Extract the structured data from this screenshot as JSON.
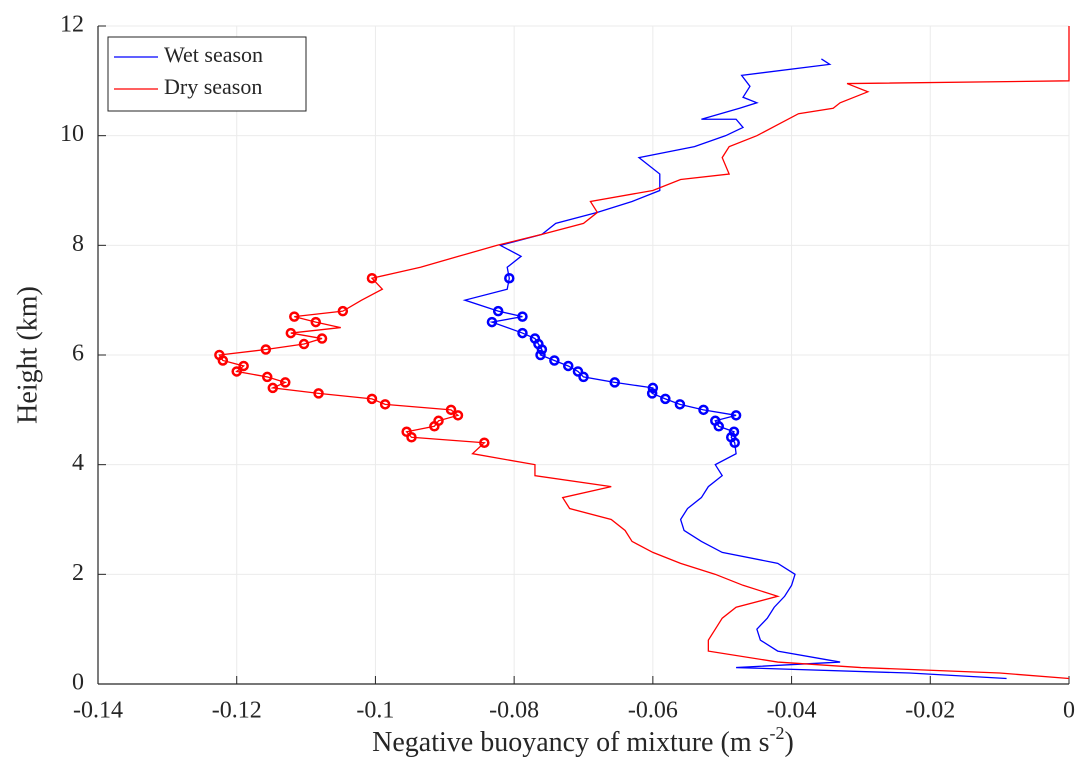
{
  "chart_data": {
    "type": "line",
    "xlabel": {
      "text": "Negative buoyancy of mixture (m s",
      "sup": "-2",
      "end": ")"
    },
    "ylabel": "Height (km)",
    "xlim": [
      -0.14,
      0
    ],
    "ylim": [
      0,
      12
    ],
    "xticks": [
      -0.14,
      -0.12,
      -0.1,
      -0.08,
      -0.06,
      -0.04,
      -0.02,
      0
    ],
    "yticks": [
      0,
      2,
      4,
      6,
      8,
      10,
      12
    ],
    "grid": true,
    "legend": "upper left",
    "series": [
      {
        "name": "Wet season",
        "color": "#0000ff",
        "x": [
          -0.0357,
          -0.0345,
          -0.0472,
          -0.046,
          -0.047,
          -0.045,
          -0.0475,
          -0.053,
          -0.048,
          -0.047,
          -0.0495,
          -0.054,
          -0.062,
          -0.059,
          -0.059,
          -0.063,
          -0.068,
          -0.074,
          -0.076,
          -0.082,
          -0.079,
          -0.081,
          -0.0807,
          -0.081,
          -0.0871,
          -0.0823,
          -0.0788,
          -0.0832,
          -0.0788,
          -0.077,
          -0.0765,
          -0.076,
          -0.0762,
          -0.0742,
          -0.0722,
          -0.0708,
          -0.07,
          -0.0655,
          -0.06,
          -0.0601,
          -0.0582,
          -0.0561,
          -0.0527,
          -0.048,
          -0.051,
          -0.0505,
          -0.0483,
          -0.0487,
          -0.0482,
          -0.048,
          -0.051,
          -0.05,
          -0.052,
          -0.053,
          -0.055,
          -0.056,
          -0.0555,
          -0.053,
          -0.05,
          -0.042,
          -0.0395,
          -0.04,
          -0.041,
          -0.0425,
          -0.0435,
          -0.045,
          -0.0445,
          -0.042,
          -0.033,
          -0.048,
          -0.023,
          -0.009
        ],
        "y": [
          11.4,
          11.3,
          11.1,
          10.9,
          10.7,
          10.6,
          10.5,
          10.3,
          10.3,
          10.15,
          10.0,
          9.8,
          9.6,
          9.3,
          9.0,
          8.8,
          8.6,
          8.4,
          8.2,
          8.0,
          7.8,
          7.6,
          7.4,
          7.2,
          7.0,
          6.8,
          6.7,
          6.6,
          6.4,
          6.3,
          6.2,
          6.1,
          6.0,
          5.9,
          5.8,
          5.7,
          5.6,
          5.5,
          5.4,
          5.3,
          5.2,
          5.1,
          5.0,
          4.9,
          4.8,
          4.7,
          4.6,
          4.5,
          4.4,
          4.2,
          4.0,
          3.8,
          3.6,
          3.4,
          3.2,
          3.0,
          2.8,
          2.6,
          2.4,
          2.2,
          2.0,
          1.8,
          1.6,
          1.4,
          1.2,
          1.0,
          0.8,
          0.6,
          0.4,
          0.3,
          0.2,
          0.1
        ],
        "markers": {
          "x": [
            -0.0807,
            -0.0823,
            -0.0788,
            -0.0832,
            -0.0788,
            -0.077,
            -0.0765,
            -0.076,
            -0.0762,
            -0.0742,
            -0.0722,
            -0.0708,
            -0.07,
            -0.0655,
            -0.06,
            -0.0601,
            -0.0582,
            -0.0561,
            -0.0527,
            -0.048,
            -0.051,
            -0.0505,
            -0.0483,
            -0.0487,
            -0.0482
          ],
          "y": [
            7.4,
            6.8,
            6.7,
            6.6,
            6.4,
            6.3,
            6.2,
            6.1,
            6.0,
            5.9,
            5.8,
            5.7,
            5.6,
            5.5,
            5.4,
            5.3,
            5.2,
            5.1,
            5.0,
            4.9,
            4.8,
            4.7,
            4.6,
            4.5,
            4.4
          ]
        }
      },
      {
        "name": "Dry season",
        "color": "#ff0000",
        "x": [
          0,
          0,
          -0.032,
          -0.029,
          -0.033,
          -0.034,
          -0.039,
          -0.042,
          -0.045,
          -0.049,
          -0.05,
          -0.049,
          -0.056,
          -0.06,
          -0.069,
          -0.068,
          -0.07,
          -0.076,
          -0.0825,
          -0.088,
          -0.0935,
          -0.097,
          -0.1005,
          -0.099,
          -0.102,
          -0.1047,
          -0.1117,
          -0.1086,
          -0.105,
          -0.1122,
          -0.1077,
          -0.1103,
          -0.1158,
          -0.1225,
          -0.122,
          -0.119,
          -0.12,
          -0.1156,
          -0.113,
          -0.1148,
          -0.1082,
          -0.1005,
          -0.0986,
          -0.0891,
          -0.0881,
          -0.0909,
          -0.0915,
          -0.0955,
          -0.0948,
          -0.0843,
          -0.086,
          -0.077,
          -0.077,
          -0.066,
          -0.073,
          -0.072,
          -0.066,
          -0.064,
          -0.063,
          -0.06,
          -0.056,
          -0.051,
          -0.047,
          -0.042,
          -0.048,
          -0.05,
          -0.051,
          -0.052,
          -0.052,
          -0.042,
          -0.03,
          -0.01,
          0
        ],
        "y": [
          12.0,
          11.0,
          10.95,
          10.8,
          10.6,
          10.5,
          10.4,
          10.2,
          10.0,
          9.8,
          9.6,
          9.3,
          9.2,
          9.0,
          8.8,
          8.6,
          8.4,
          8.2,
          8.0,
          7.8,
          7.6,
          7.5,
          7.4,
          7.2,
          7.0,
          6.8,
          6.7,
          6.6,
          6.5,
          6.4,
          6.3,
          6.2,
          6.1,
          6.0,
          5.9,
          5.8,
          5.7,
          5.6,
          5.5,
          5.4,
          5.3,
          5.2,
          5.1,
          5.0,
          4.9,
          4.8,
          4.7,
          4.6,
          4.5,
          4.4,
          4.2,
          4.0,
          3.8,
          3.6,
          3.4,
          3.2,
          3.0,
          2.8,
          2.6,
          2.4,
          2.2,
          2.0,
          1.8,
          1.6,
          1.4,
          1.2,
          1.0,
          0.8,
          0.6,
          0.4,
          0.3,
          0.2,
          0.1
        ],
        "markers": {
          "x": [
            -0.1005,
            -0.1047,
            -0.1117,
            -0.1086,
            -0.1122,
            -0.1077,
            -0.1103,
            -0.1158,
            -0.1225,
            -0.122,
            -0.119,
            -0.12,
            -0.1156,
            -0.113,
            -0.1148,
            -0.1082,
            -0.1005,
            -0.0986,
            -0.0891,
            -0.0881,
            -0.0909,
            -0.0915,
            -0.0955,
            -0.0948,
            -0.0843
          ],
          "y": [
            7.4,
            6.8,
            6.7,
            6.6,
            6.4,
            6.3,
            6.2,
            6.1,
            6.0,
            5.9,
            5.8,
            5.7,
            5.6,
            5.5,
            5.4,
            5.3,
            5.2,
            5.1,
            5.0,
            4.9,
            4.8,
            4.7,
            4.6,
            4.5,
            4.4
          ]
        }
      }
    ]
  }
}
